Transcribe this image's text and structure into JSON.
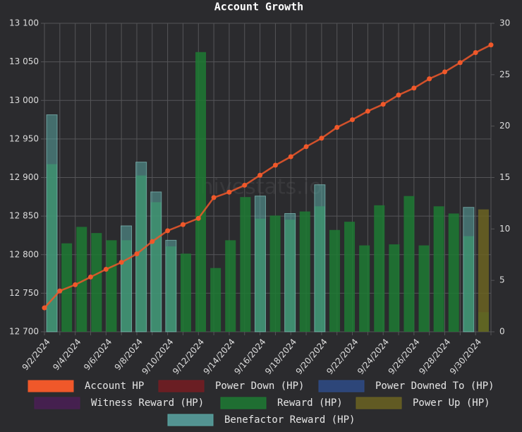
{
  "chart_data": {
    "type": "bar-line",
    "title": "Account Growth",
    "watermark": "hivestats.io",
    "categories": [
      "9/2/2024",
      null,
      "9/4/2024",
      null,
      "9/6/2024",
      null,
      "9/8/2024",
      null,
      "9/10/2024",
      null,
      "9/12/2024",
      null,
      "9/14/2024",
      null,
      "9/16/2024",
      null,
      "9/18/2024",
      null,
      "9/20/2024",
      null,
      "9/22/2024",
      null,
      "9/24/2024",
      null,
      "9/26/2024",
      null,
      "9/28/2024",
      null,
      "9/30/2024",
      null
    ],
    "ylim": [
      12700,
      13100
    ],
    "yticks": [
      {
        "value": 12700,
        "label": "12 700"
      },
      {
        "value": 12750,
        "label": "12 750"
      },
      {
        "value": 12800,
        "label": "12 800"
      },
      {
        "value": 12850,
        "label": "12 850"
      },
      {
        "value": 12900,
        "label": "12 900"
      },
      {
        "value": 12950,
        "label": "12 950"
      },
      {
        "value": 13000,
        "label": "13 000"
      },
      {
        "value": 13050,
        "label": "13 050"
      },
      {
        "value": 13100,
        "label": "13 100"
      }
    ],
    "y2lim": [
      0,
      30
    ],
    "y2ticks": [
      0,
      5,
      10,
      15,
      20,
      25,
      30
    ],
    "grid": true,
    "series": [
      {
        "name": "Account HP",
        "color": "#f0582a",
        "kind": "line",
        "axis": "y",
        "values": [
          12731,
          12753,
          12761,
          12771,
          12781,
          12790,
          12801,
          12817,
          12831,
          12839,
          12847,
          12874,
          12881,
          12890,
          12903,
          12916,
          12927,
          12940,
          12951,
          12965,
          12975,
          12986,
          12995,
          13007,
          13016,
          13028,
          13037,
          13049,
          13062,
          13072
        ]
      },
      {
        "name": "Power Down (HP)",
        "color": "#761c21",
        "kind": "bar",
        "axis": "y2",
        "values": [
          null,
          null,
          null,
          null,
          null,
          null,
          null,
          null,
          null,
          null,
          null,
          null,
          null,
          null,
          null,
          null,
          null,
          null,
          null,
          null,
          null,
          null,
          null,
          null,
          null,
          null,
          null,
          null,
          null,
          null
        ]
      },
      {
        "name": "Power Downed To (HP)",
        "color": "#2e4b86",
        "kind": "bar",
        "axis": "y2",
        "values": [
          null,
          null,
          null,
          null,
          null,
          null,
          null,
          null,
          null,
          null,
          null,
          null,
          null,
          null,
          null,
          null,
          null,
          null,
          null,
          null,
          null,
          null,
          null,
          null,
          null,
          null,
          null,
          null,
          null,
          null
        ]
      },
      {
        "name": "Witness Reward (HP)",
        "color": "#4a1f55",
        "kind": "bar",
        "axis": "y2",
        "values": [
          null,
          null,
          null,
          null,
          null,
          null,
          null,
          null,
          null,
          null,
          null,
          null,
          null,
          null,
          null,
          null,
          null,
          null,
          null,
          null,
          null,
          null,
          null,
          null,
          null,
          null,
          null,
          null,
          null,
          null
        ]
      },
      {
        "name": "Reward (HP)",
        "color": "#1d7a33",
        "kind": "bar",
        "axis": "y2",
        "values": [
          16.3,
          8.6,
          10.2,
          9.6,
          8.9,
          8.9,
          15.2,
          12.6,
          8.3,
          7.6,
          27.2,
          6.2,
          8.9,
          13.1,
          11.0,
          11.3,
          10.9,
          11.7,
          12.2,
          9.9,
          10.7,
          8.4,
          12.3,
          8.5,
          13.2,
          8.4,
          12.2,
          11.5,
          9.3,
          1.9
        ]
      },
      {
        "name": "Power Up (HP)",
        "color": "#6b6321",
        "kind": "bar",
        "axis": "y2",
        "values": [
          null,
          null,
          null,
          null,
          null,
          null,
          null,
          null,
          null,
          null,
          null,
          null,
          null,
          null,
          null,
          null,
          null,
          null,
          null,
          null,
          null,
          null,
          null,
          null,
          null,
          null,
          null,
          null,
          null,
          11.9
        ]
      },
      {
        "name": "Benefactor Reward (HP)",
        "color": "#5aa6a3",
        "kind": "bar",
        "axis": "y2",
        "values": [
          21.1,
          null,
          null,
          null,
          null,
          10.3,
          16.5,
          13.6,
          8.9,
          null,
          null,
          null,
          null,
          null,
          13.2,
          null,
          11.5,
          null,
          14.3,
          null,
          null,
          null,
          null,
          null,
          null,
          null,
          null,
          null,
          12.1,
          null
        ]
      }
    ]
  }
}
